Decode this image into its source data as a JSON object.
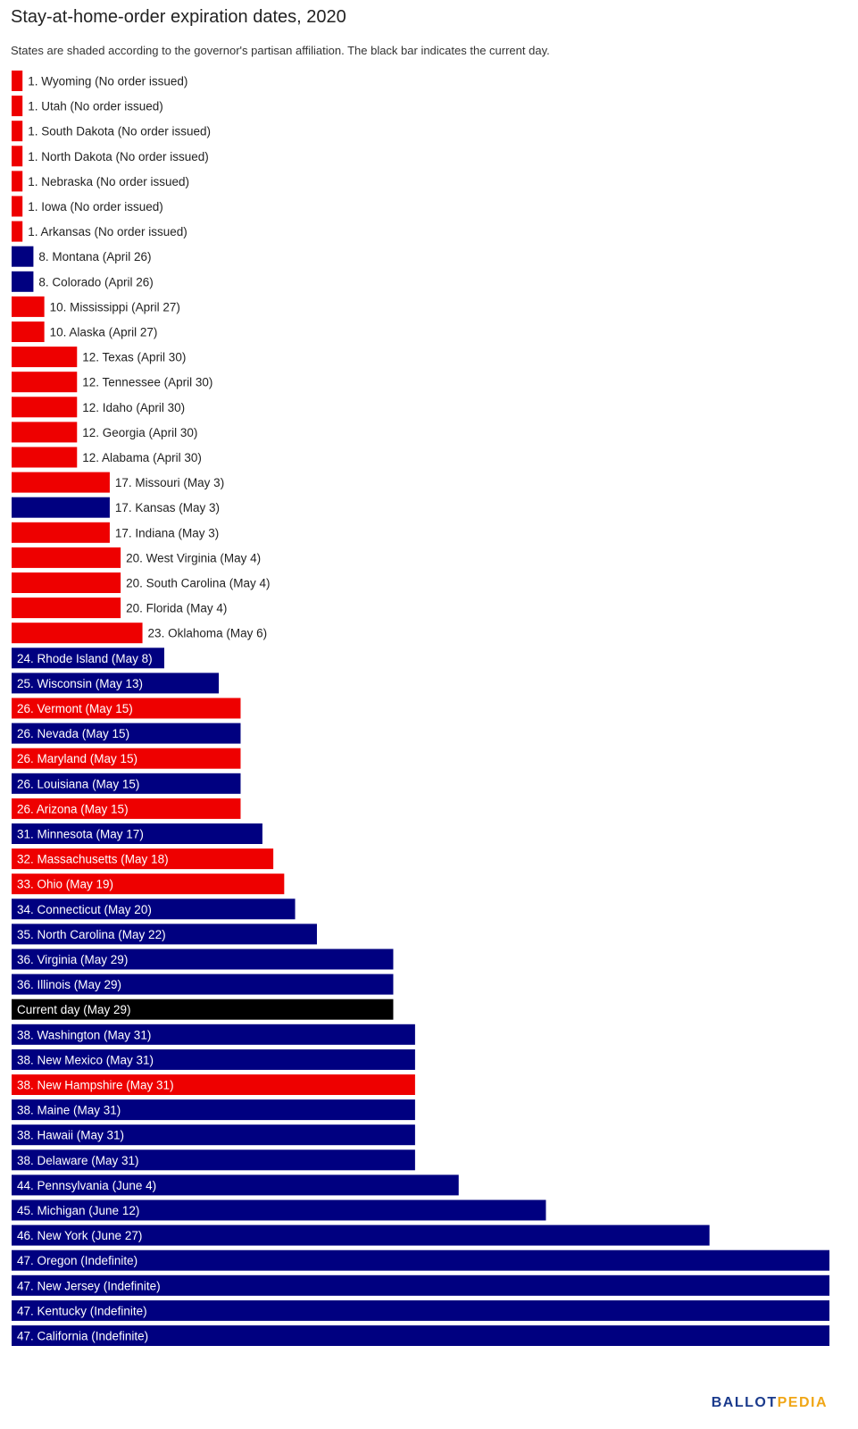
{
  "header": {
    "title": "Stay-at-home-order expiration dates, 2020",
    "subtitle": "States are shaded according to the governor's partisan affiliation. The black bar indicates the current day."
  },
  "logo": {
    "part1": "BALLOT",
    "part2": "PEDIA"
  },
  "colors": {
    "republican": "#ee0000",
    "democrat": "#000080",
    "current": "#000000"
  },
  "chart_data": {
    "type": "bar",
    "orientation": "horizontal",
    "title": "Stay-at-home-order expiration dates, 2020",
    "unit": "days relative to April 26 (approx.)",
    "bars": [
      {
        "label": "1. Wyoming (No order issued)",
        "value": 1,
        "party": "republican"
      },
      {
        "label": "1. Utah (No order issued)",
        "value": 1,
        "party": "republican"
      },
      {
        "label": "1. South Dakota (No order issued)",
        "value": 1,
        "party": "republican"
      },
      {
        "label": "1. North Dakota (No order issued)",
        "value": 1,
        "party": "republican"
      },
      {
        "label": "1. Nebraska (No order issued)",
        "value": 1,
        "party": "republican"
      },
      {
        "label": "1. Iowa (No order issued)",
        "value": 1,
        "party": "republican"
      },
      {
        "label": "1. Arkansas (No order issued)",
        "value": 1,
        "party": "republican"
      },
      {
        "label": "8. Montana (April 26)",
        "value": 2,
        "party": "democrat"
      },
      {
        "label": "8. Colorado (April 26)",
        "value": 2,
        "party": "democrat"
      },
      {
        "label": "10. Mississippi (April 27)",
        "value": 3,
        "party": "republican"
      },
      {
        "label": "10. Alaska (April 27)",
        "value": 3,
        "party": "republican"
      },
      {
        "label": "12. Texas (April 30)",
        "value": 6,
        "party": "republican"
      },
      {
        "label": "12. Tennessee (April 30)",
        "value": 6,
        "party": "republican"
      },
      {
        "label": "12. Idaho (April 30)",
        "value": 6,
        "party": "republican"
      },
      {
        "label": "12. Georgia (April 30)",
        "value": 6,
        "party": "republican"
      },
      {
        "label": "12. Alabama (April 30)",
        "value": 6,
        "party": "republican"
      },
      {
        "label": "17. Missouri (May 3)",
        "value": 9,
        "party": "republican"
      },
      {
        "label": "17. Kansas (May 3)",
        "value": 9,
        "party": "democrat"
      },
      {
        "label": "17. Indiana (May 3)",
        "value": 9,
        "party": "republican"
      },
      {
        "label": "20. West Virginia (May 4)",
        "value": 10,
        "party": "republican"
      },
      {
        "label": "20. South Carolina (May 4)",
        "value": 10,
        "party": "republican"
      },
      {
        "label": "20. Florida (May 4)",
        "value": 10,
        "party": "republican"
      },
      {
        "label": "23. Oklahoma (May 6)",
        "value": 12,
        "party": "republican"
      },
      {
        "label": "24. Rhode Island (May 8)",
        "value": 14,
        "party": "democrat"
      },
      {
        "label": "25. Wisconsin (May 13)",
        "value": 19,
        "party": "democrat"
      },
      {
        "label": "26. Vermont (May 15)",
        "value": 21,
        "party": "republican"
      },
      {
        "label": "26. Nevada (May 15)",
        "value": 21,
        "party": "democrat"
      },
      {
        "label": "26. Maryland (May 15)",
        "value": 21,
        "party": "republican"
      },
      {
        "label": "26. Louisiana (May 15)",
        "value": 21,
        "party": "democrat"
      },
      {
        "label": "26. Arizona (May 15)",
        "value": 21,
        "party": "republican"
      },
      {
        "label": "31. Minnesota (May 17)",
        "value": 23,
        "party": "democrat"
      },
      {
        "label": "32. Massachusetts (May 18)",
        "value": 24,
        "party": "republican"
      },
      {
        "label": "33. Ohio (May 19)",
        "value": 25,
        "party": "republican"
      },
      {
        "label": "34. Connecticut (May 20)",
        "value": 26,
        "party": "democrat"
      },
      {
        "label": "35. North Carolina (May 22)",
        "value": 28,
        "party": "democrat"
      },
      {
        "label": "36. Virginia (May 29)",
        "value": 35,
        "party": "democrat"
      },
      {
        "label": "36. Illinois (May 29)",
        "value": 35,
        "party": "democrat"
      },
      {
        "label": "Current day (May 29)",
        "value": 35,
        "party": "current"
      },
      {
        "label": "38. Washington (May 31)",
        "value": 37,
        "party": "democrat"
      },
      {
        "label": "38. New Mexico (May 31)",
        "value": 37,
        "party": "democrat"
      },
      {
        "label": "38. New Hampshire (May 31)",
        "value": 37,
        "party": "republican"
      },
      {
        "label": "38. Maine (May 31)",
        "value": 37,
        "party": "democrat"
      },
      {
        "label": "38. Hawaii (May 31)",
        "value": 37,
        "party": "democrat"
      },
      {
        "label": "38. Delaware (May 31)",
        "value": 37,
        "party": "democrat"
      },
      {
        "label": "44. Pennsylvania (June 4)",
        "value": 41,
        "party": "democrat"
      },
      {
        "label": "45. Michigan (June 12)",
        "value": 49,
        "party": "democrat"
      },
      {
        "label": "46. New York (June 27)",
        "value": 64,
        "party": "democrat"
      },
      {
        "label": "47. Oregon (Indefinite)",
        "value": 75,
        "party": "democrat"
      },
      {
        "label": "47. New Jersey (Indefinite)",
        "value": 75,
        "party": "democrat"
      },
      {
        "label": "47. Kentucky (Indefinite)",
        "value": 75,
        "party": "democrat"
      },
      {
        "label": "47. California (Indefinite)",
        "value": 75,
        "party": "democrat"
      }
    ],
    "xlim": [
      0,
      75
    ],
    "grid": false,
    "legend": "none"
  }
}
